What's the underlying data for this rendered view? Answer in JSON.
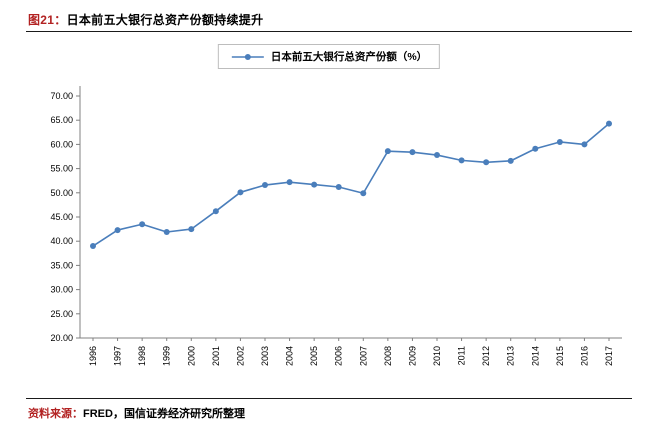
{
  "figure": {
    "label": "图21：",
    "title": "日本前五大银行总资产份额持续提升"
  },
  "legend": {
    "label": "日本前五大银行总资产份额（%）"
  },
  "source": {
    "label": "资料来源：",
    "text": "FRED，国信证券经济研究所整理"
  },
  "colors": {
    "accent_red": "#b22222",
    "line_blue": "#4a7ebb",
    "axis_gray": "#808080",
    "legend_border": "#bdbdbd"
  },
  "chart_data": {
    "type": "line",
    "title": "日本前五大银行总资产份额持续提升",
    "xlabel": "",
    "ylabel": "",
    "ylim": [
      20,
      70
    ],
    "ytick_step": 5,
    "ytick_format_decimals": 2,
    "grid": false,
    "legend_position": "top",
    "categories": [
      "1996",
      "1997",
      "1998",
      "1999",
      "2000",
      "2001",
      "2002",
      "2003",
      "2004",
      "2005",
      "2006",
      "2007",
      "2008",
      "2009",
      "2010",
      "2011",
      "2012",
      "2013",
      "2014",
      "2015",
      "2016",
      "2017"
    ],
    "series": [
      {
        "name": "日本前五大银行总资产份额（%）",
        "color": "#4a7ebb",
        "values": [
          39.0,
          42.3,
          43.5,
          41.9,
          42.5,
          46.2,
          50.1,
          51.6,
          52.2,
          51.7,
          51.2,
          49.9,
          58.6,
          58.4,
          57.8,
          56.7,
          56.3,
          56.6,
          59.1,
          60.5,
          60.0,
          64.3
        ]
      }
    ]
  }
}
